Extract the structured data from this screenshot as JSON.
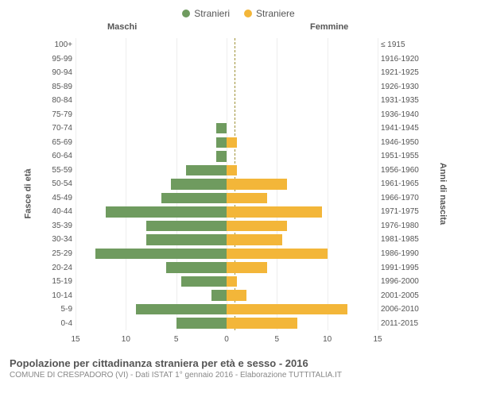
{
  "legend": {
    "male": {
      "label": "Stranieri",
      "color": "#6f9b5f"
    },
    "female": {
      "label": "Straniere",
      "color": "#f3b639"
    }
  },
  "columns": {
    "male_header": "Maschi",
    "female_header": "Femmine"
  },
  "y_axis_left": {
    "title": "Fasce di età"
  },
  "y_axis_right": {
    "title": "Anni di nascita"
  },
  "x_axis": {
    "max": 15,
    "ticks_left": [
      15,
      10,
      5,
      0
    ],
    "ticks_right": [
      0,
      5,
      10,
      15
    ],
    "grid_color": "#eeeeee"
  },
  "colors": {
    "male_bar": "#6f9b5f",
    "female_bar": "#f3b639",
    "center_line": "#a0933a",
    "text": "#555555",
    "subtext": "#888888",
    "background": "#ffffff"
  },
  "rows": [
    {
      "age": "100+",
      "birth": "≤ 1915",
      "m": 0,
      "f": 0
    },
    {
      "age": "95-99",
      "birth": "1916-1920",
      "m": 0,
      "f": 0
    },
    {
      "age": "90-94",
      "birth": "1921-1925",
      "m": 0,
      "f": 0
    },
    {
      "age": "85-89",
      "birth": "1926-1930",
      "m": 0,
      "f": 0
    },
    {
      "age": "80-84",
      "birth": "1931-1935",
      "m": 0,
      "f": 0
    },
    {
      "age": "75-79",
      "birth": "1936-1940",
      "m": 0,
      "f": 0
    },
    {
      "age": "70-74",
      "birth": "1941-1945",
      "m": 1.0,
      "f": 0
    },
    {
      "age": "65-69",
      "birth": "1946-1950",
      "m": 1.0,
      "f": 1.0
    },
    {
      "age": "60-64",
      "birth": "1951-1955",
      "m": 1.0,
      "f": 0
    },
    {
      "age": "55-59",
      "birth": "1956-1960",
      "m": 4.0,
      "f": 1.0
    },
    {
      "age": "50-54",
      "birth": "1961-1965",
      "m": 5.5,
      "f": 6.0
    },
    {
      "age": "45-49",
      "birth": "1966-1970",
      "m": 6.5,
      "f": 4.0
    },
    {
      "age": "40-44",
      "birth": "1971-1975",
      "m": 12.0,
      "f": 9.5
    },
    {
      "age": "35-39",
      "birth": "1976-1980",
      "m": 8.0,
      "f": 6.0
    },
    {
      "age": "30-34",
      "birth": "1981-1985",
      "m": 8.0,
      "f": 5.5
    },
    {
      "age": "25-29",
      "birth": "1986-1990",
      "m": 13.0,
      "f": 10.0
    },
    {
      "age": "20-24",
      "birth": "1991-1995",
      "m": 6.0,
      "f": 4.0
    },
    {
      "age": "15-19",
      "birth": "1996-2000",
      "m": 4.5,
      "f": 1.0
    },
    {
      "age": "10-14",
      "birth": "2001-2005",
      "m": 1.5,
      "f": 2.0
    },
    {
      "age": "5-9",
      "birth": "2006-2010",
      "m": 9.0,
      "f": 12.0
    },
    {
      "age": "0-4",
      "birth": "2011-2015",
      "m": 5.0,
      "f": 7.0
    }
  ],
  "caption": {
    "title": "Popolazione per cittadinanza straniera per età e sesso - 2016",
    "subtitle": "COMUNE DI CRESPADORO (VI) - Dati ISTAT 1° gennaio 2016 - Elaborazione TUTTITALIA.IT"
  }
}
